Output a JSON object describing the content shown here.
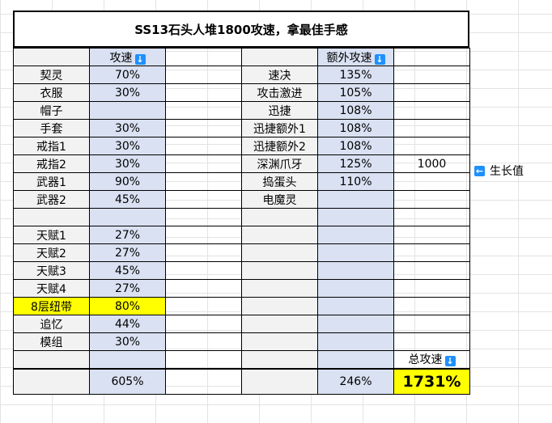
{
  "title": "SS13石头人堆1800攻速，拿最佳手感",
  "headers": {
    "col2": "攻速",
    "col5": "额外攻速",
    "total": "总攻速"
  },
  "left_rows": [
    {
      "name": "契灵",
      "value": "70%"
    },
    {
      "name": "衣服",
      "value": "30%"
    },
    {
      "name": "帽子",
      "value": ""
    },
    {
      "name": "手套",
      "value": "30%"
    },
    {
      "name": "戒指1",
      "value": "30%"
    },
    {
      "name": "戒指2",
      "value": "30%"
    },
    {
      "name": "武器1",
      "value": "90%"
    },
    {
      "name": "武器2",
      "value": "45%"
    },
    {
      "name": "",
      "value": ""
    },
    {
      "name": "天赋1",
      "value": "27%"
    },
    {
      "name": "天赋2",
      "value": "27%"
    },
    {
      "name": "天赋3",
      "value": "45%"
    },
    {
      "name": "天赋4",
      "value": "27%"
    },
    {
      "name": "8层纽带",
      "value": "80%"
    },
    {
      "name": "追忆",
      "value": "44%"
    },
    {
      "name": "模组",
      "value": "30%"
    }
  ],
  "right_rows": [
    {
      "name": "速决",
      "value": "135%",
      "extra": ""
    },
    {
      "name": "攻击激进",
      "value": "105%",
      "extra": ""
    },
    {
      "name": "迅捷",
      "value": "108%",
      "extra": ""
    },
    {
      "name": "迅捷额外1",
      "value": "108%",
      "extra": ""
    },
    {
      "name": "迅捷额外2",
      "value": "108%",
      "extra": ""
    },
    {
      "name": "深渊爪牙",
      "value": "125%",
      "extra": "1000"
    },
    {
      "name": "捣蛋头",
      "value": "110%",
      "extra": ""
    },
    {
      "name": "电魔灵",
      "value": "",
      "extra": ""
    }
  ],
  "side_note": "生长值",
  "totals": {
    "left": "605%",
    "right": "246%",
    "grand": "1731%"
  },
  "icons": {
    "arrow_down": "arrow-down-icon",
    "arrow_left": "arrow-left-icon"
  },
  "colors": {
    "gray": "#f2f2f2",
    "blue": "#d9e1f2",
    "yellow": "#ffff00",
    "icon": "#1e90ff"
  }
}
